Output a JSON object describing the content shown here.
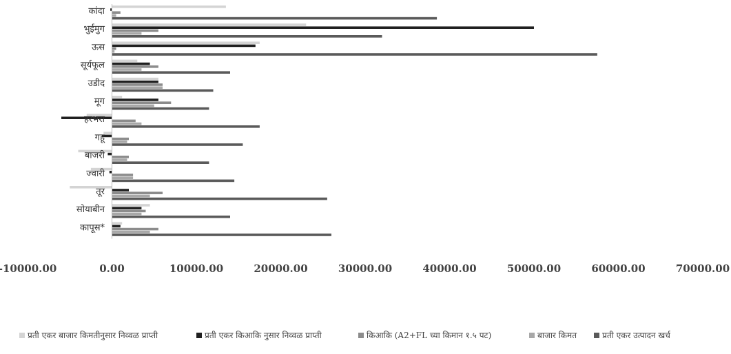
{
  "chart_data": {
    "type": "bar",
    "orientation": "horizontal",
    "categories": [
      "कांदा",
      "भुईमुग",
      "ऊस",
      "सूर्यफूल",
      "उडीद",
      "मूग",
      "हरभरा",
      "गहू",
      "बाजरी",
      "ज्वारी",
      "तूर",
      "सोयाबीन",
      "कापूस*"
    ],
    "series": [
      {
        "name": "प्रती एकर बाजार किमतीनुसार निव्वळ प्राप्ती",
        "color": "#d4d4d4",
        "values": [
          13500,
          23000,
          17500,
          3000,
          5500,
          1200,
          -3000,
          -1000,
          -4000,
          -2500,
          -5000,
          4500,
          1200
        ]
      },
      {
        "name": "प्रती एकर किआकि नुसार निव्वळ प्राप्ती",
        "color": "#202020",
        "values": [
          -200,
          50000,
          17000,
          4500,
          5500,
          5500,
          -6000,
          -1200,
          -500,
          -300,
          2000,
          3500,
          1000
        ]
      },
      {
        "name": "किआकि (A2+FL च्या किमान १.५ पट)",
        "color": "#8c8c8c",
        "values": [
          1000,
          5500,
          500,
          5500,
          6000,
          7000,
          2800,
          2000,
          2000,
          2500,
          6000,
          4000,
          5500
        ]
      },
      {
        "name": "बाजार किमत",
        "color": "#a8a8a8",
        "values": [
          500,
          3500,
          300,
          3500,
          6000,
          5000,
          3500,
          1800,
          1800,
          2500,
          4500,
          3500,
          4500
        ]
      },
      {
        "name": "प्रती एकर उत्पादन खर्च",
        "color": "#5a5a5a",
        "values": [
          38500,
          32000,
          57500,
          14000,
          12000,
          11500,
          17500,
          15500,
          11500,
          14500,
          25500,
          14000,
          26000
        ]
      }
    ],
    "xlim": [
      -10000,
      70000
    ],
    "ticks": [
      "-10000.00",
      "0.00",
      "10000.00",
      "20000.00",
      "30000.00",
      "40000.00",
      "50000.00",
      "60000.00",
      "70000.00"
    ],
    "tick_values": [
      -10000,
      0,
      10000,
      20000,
      30000,
      40000,
      50000,
      60000,
      70000
    ],
    "legend_position": "bottom",
    "grid": false
  }
}
